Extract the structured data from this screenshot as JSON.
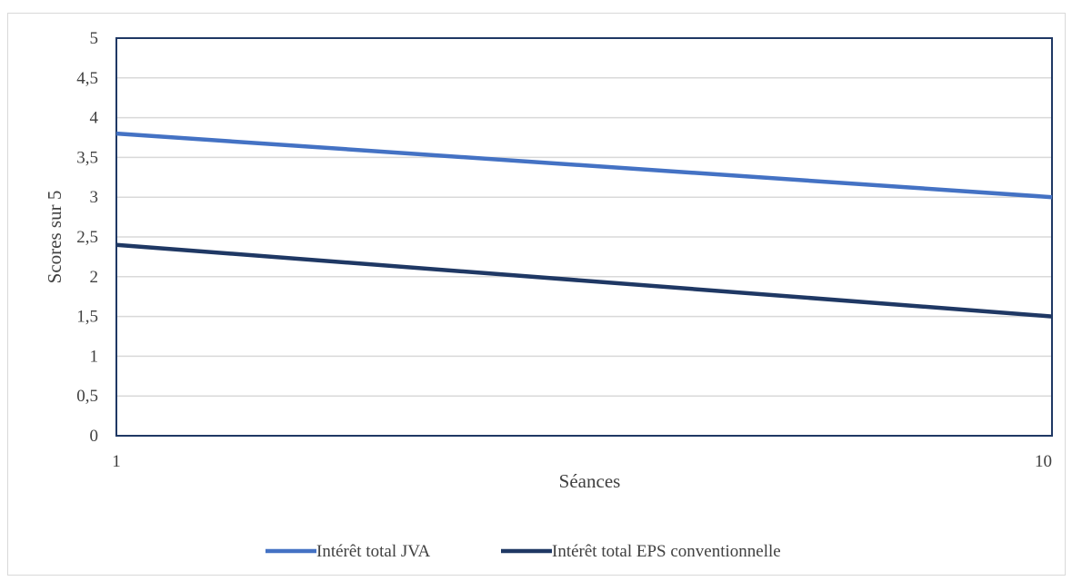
{
  "chart_data": {
    "type": "line",
    "title": "",
    "xlabel": "Séances",
    "ylabel": "Scores sur 5",
    "x": [
      1,
      10
    ],
    "x_tick_labels": [
      "1",
      "10"
    ],
    "ylim": [
      0,
      5
    ],
    "y_ticks": [
      0,
      0.5,
      1,
      1.5,
      2,
      2.5,
      3,
      3.5,
      4,
      4.5,
      5
    ],
    "y_tick_labels": [
      "0",
      "0,5",
      "1",
      "1,5",
      "2",
      "2,5",
      "3",
      "3,5",
      "4",
      "4,5",
      "5"
    ],
    "grid": true,
    "legend_position": "bottom",
    "series": [
      {
        "name": "Intérêt total JVA",
        "values": [
          3.8,
          3.0
        ],
        "color": "#4472c4"
      },
      {
        "name": "Intérêt total EPS conventionnelle",
        "values": [
          2.4,
          1.5
        ],
        "color": "#1f3864"
      }
    ],
    "plot_border_color": "#1f3864",
    "grid_color": "#d9d9d9"
  }
}
